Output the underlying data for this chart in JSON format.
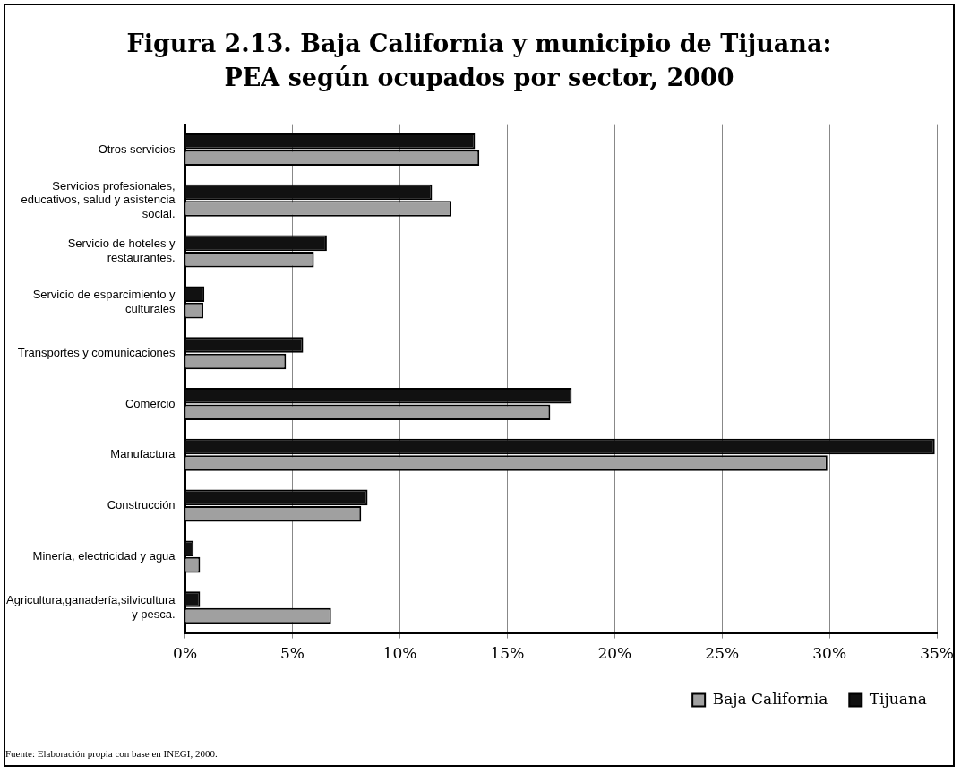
{
  "chart_data": {
    "type": "bar",
    "orientation": "horizontal",
    "title": "Figura 2.13. Baja California y municipio de Tijuana: PEA según ocupados por sector, 2000",
    "categories": [
      "Otros servicios",
      "Servicios profesionales, educativos, salud y asistencia social.",
      "Servicio de hoteles y restaurantes.",
      "Servicio de esparcimiento y culturales",
      "Transportes y comunicaciones",
      "Comercio",
      "Manufactura",
      "Construcción",
      "Minería, electricidad y agua",
      "Agricultura,ganadería,silvicultura y pesca."
    ],
    "series": [
      {
        "name": "Baja California",
        "color": "#a0a0a0",
        "values": [
          13.7,
          12.4,
          6.0,
          0.85,
          4.7,
          17.0,
          29.9,
          8.2,
          0.7,
          6.8
        ]
      },
      {
        "name": "Tijuana",
        "color": "#111111",
        "values": [
          13.5,
          11.5,
          6.6,
          0.9,
          5.5,
          18.0,
          34.9,
          8.5,
          0.4,
          0.7
        ]
      }
    ],
    "xlim": [
      0,
      35
    ],
    "xticks": [
      {
        "value": 0,
        "label": "0%"
      },
      {
        "value": 5,
        "label": "5%"
      },
      {
        "value": 10,
        "label": "10%"
      },
      {
        "value": 15,
        "label": "15%"
      },
      {
        "value": 20,
        "label": "20%"
      },
      {
        "value": 25,
        "label": "25%"
      },
      {
        "value": 30,
        "label": "30%"
      },
      {
        "value": 35,
        "label": "35%"
      }
    ],
    "grid": "x",
    "legend": "bottom right",
    "annotations": [
      "Fuente: Elaboración propia con base en INEGI, 2000."
    ]
  }
}
